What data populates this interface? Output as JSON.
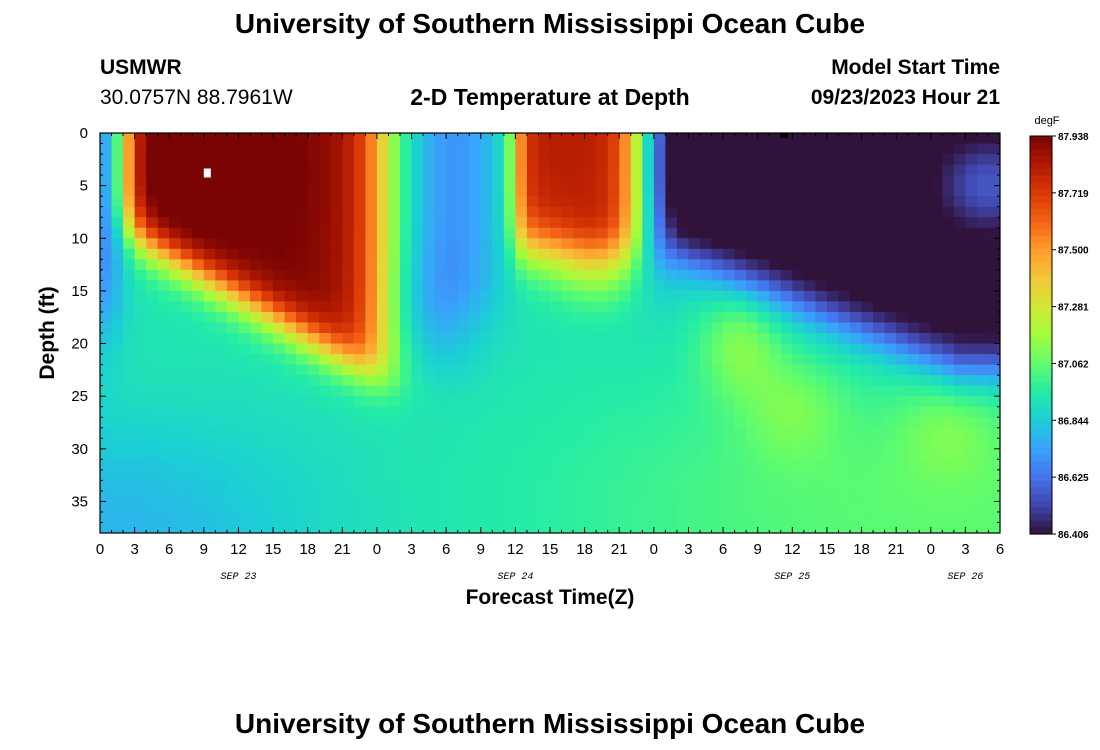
{
  "header": {
    "title": "University of Southern Mississippi Ocean Cube",
    "station": "USMWR",
    "coords": "30.0757N  88.7961W",
    "subtitle": "2-D Temperature at Depth",
    "model_label": "Model Start Time",
    "model_time": "09/23/2023 Hour 21"
  },
  "footer": {
    "title": "University of Southern Mississippi Ocean Cube"
  },
  "chart_data": {
    "type": "heatmap",
    "title": "2-D Temperature at Depth",
    "xlabel": "Forecast Time(Z)",
    "ylabel": "Depth (ft)",
    "x_ticks": [
      "0",
      "3",
      "6",
      "9",
      "12",
      "15",
      "18",
      "21",
      "0",
      "3",
      "6",
      "9",
      "12",
      "15",
      "18",
      "21",
      "0",
      "3",
      "6",
      "9",
      "12",
      "15",
      "18",
      "21",
      "0",
      "3",
      "6"
    ],
    "x_range_hours": [
      0,
      78
    ],
    "date_labels": [
      {
        "label": "SEP 23",
        "hour": 12
      },
      {
        "label": "SEP 24",
        "hour": 36
      },
      {
        "label": "SEP 25",
        "hour": 60
      },
      {
        "label": "SEP 26",
        "hour": 75
      }
    ],
    "y_ticks": [
      "0",
      "5",
      "10",
      "15",
      "20",
      "25",
      "30",
      "35"
    ],
    "y_range_ft": [
      0,
      38
    ],
    "colorbar": {
      "unit": "degF",
      "labels": [
        "87.938",
        "87.719",
        "87.500",
        "87.281",
        "87.062",
        "86.844",
        "86.625",
        "86.406"
      ],
      "min": 86.406,
      "max": 87.938,
      "colors": [
        "#30123b",
        "#4145ab",
        "#4675ed",
        "#39a2fc",
        "#1bcfd4",
        "#24eca6",
        "#61fc6c",
        "#a4fc3b",
        "#d1e834",
        "#f3c63a",
        "#fe9b2d",
        "#f36315",
        "#d93806",
        "#b11901",
        "#7a0403"
      ]
    },
    "features": [
      {
        "name": "warm core 1",
        "time_hours": [
          2,
          24
        ],
        "depth_ft": [
          0,
          22
        ],
        "max_degF": 87.938
      },
      {
        "name": "warm core 2",
        "time_hours": [
          36,
          47
        ],
        "depth_ft": [
          0,
          16
        ],
        "max_degF": 87.8
      },
      {
        "name": "cold pool",
        "time_hours": [
          50,
          78
        ],
        "depth_ft": [
          0,
          23
        ],
        "min_degF": 86.406
      },
      {
        "name": "cool column",
        "time_hours": [
          25,
          35
        ],
        "depth_ft": [
          0,
          22
        ],
        "min_degF": 86.8
      }
    ],
    "markers": [
      {
        "name": "max marker",
        "time_hours": 9.3,
        "depth_ft": 3.8,
        "color": "#ffffff"
      },
      {
        "name": "min marker",
        "time_hours": 59.3,
        "depth_ft": 0.1,
        "color": "#000000"
      }
    ]
  }
}
